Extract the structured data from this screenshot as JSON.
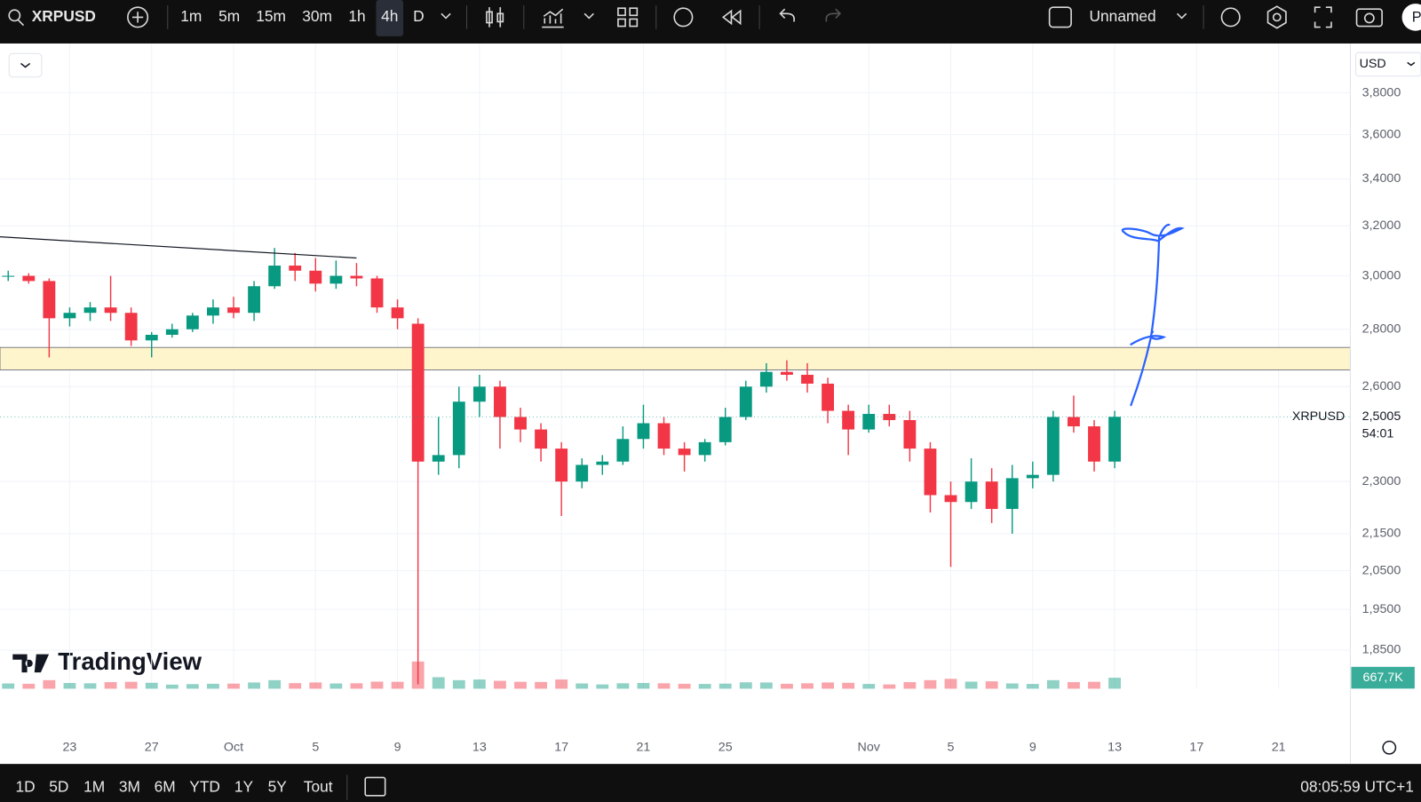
{
  "toolbar": {
    "symbol": "XRPUSD",
    "intervals": [
      "1m",
      "5m",
      "15m",
      "30m",
      "1h",
      "4h",
      "D"
    ],
    "active_interval": 5,
    "layout_name": "Unnamed",
    "avatar": "P"
  },
  "chart_data": {
    "type": "candlestick",
    "currency": "USD",
    "watermark": "TradingView",
    "open": [
      3.0,
      3.0,
      2.98,
      2.84,
      2.86,
      2.88,
      2.86,
      2.76,
      2.78,
      2.8,
      2.85,
      2.88,
      2.86,
      2.96,
      3.04,
      3.02,
      2.97,
      3.0,
      2.99,
      2.88,
      2.82,
      2.36,
      2.38,
      2.55,
      2.6,
      2.5,
      2.46,
      2.4,
      2.3,
      2.35,
      2.36,
      2.43,
      2.48,
      2.4,
      2.38,
      2.42,
      2.5,
      2.6,
      2.65,
      2.64,
      2.61,
      2.52,
      2.46,
      2.51,
      2.49,
      2.4,
      2.26,
      2.24,
      2.3,
      2.22,
      2.31,
      2.32,
      2.5,
      2.47,
      2.36
    ],
    "high": [
      3.02,
      3.01,
      2.99,
      2.88,
      2.9,
      3.0,
      2.88,
      2.79,
      2.82,
      2.86,
      2.91,
      2.92,
      2.98,
      3.11,
      3.09,
      3.07,
      3.06,
      3.05,
      3.0,
      2.91,
      2.84,
      2.5,
      2.6,
      2.64,
      2.62,
      2.53,
      2.48,
      2.42,
      2.37,
      2.38,
      2.47,
      2.54,
      2.5,
      2.42,
      2.43,
      2.53,
      2.62,
      2.68,
      2.69,
      2.68,
      2.63,
      2.54,
      2.54,
      2.54,
      2.52,
      2.42,
      2.3,
      2.37,
      2.34,
      2.35,
      2.36,
      2.52,
      2.57,
      2.49,
      2.52
    ],
    "low": [
      2.98,
      2.97,
      2.7,
      2.81,
      2.83,
      2.83,
      2.74,
      2.7,
      2.77,
      2.79,
      2.82,
      2.84,
      2.83,
      2.95,
      2.98,
      2.94,
      2.95,
      2.96,
      2.86,
      2.8,
      1.77,
      2.32,
      2.34,
      2.5,
      2.4,
      2.42,
      2.36,
      2.2,
      2.28,
      2.32,
      2.35,
      2.4,
      2.38,
      2.33,
      2.36,
      2.41,
      2.49,
      2.58,
      2.62,
      2.58,
      2.48,
      2.38,
      2.45,
      2.47,
      2.36,
      2.21,
      2.06,
      2.22,
      2.18,
      2.15,
      2.28,
      2.3,
      2.45,
      2.33,
      2.34
    ],
    "close": [
      3.0,
      2.98,
      2.84,
      2.86,
      2.88,
      2.86,
      2.76,
      2.78,
      2.8,
      2.85,
      2.88,
      2.86,
      2.96,
      3.04,
      3.02,
      2.97,
      3.0,
      2.99,
      2.88,
      2.84,
      2.36,
      2.38,
      2.55,
      2.6,
      2.5,
      2.46,
      2.4,
      2.3,
      2.35,
      2.36,
      2.43,
      2.48,
      2.4,
      2.38,
      2.42,
      2.5,
      2.6,
      2.65,
      2.64,
      2.61,
      2.52,
      2.46,
      2.51,
      2.49,
      2.4,
      2.26,
      2.24,
      2.3,
      2.22,
      2.31,
      2.32,
      2.5,
      2.47,
      2.36,
      2.5005
    ],
    "last_close_label": "2,5005",
    "countdown": "54:01",
    "volume": [
      320,
      300,
      520,
      350,
      330,
      400,
      420,
      360,
      250,
      280,
      300,
      310,
      380,
      520,
      340,
      380,
      320,
      330,
      430,
      420,
      1650,
      700,
      520,
      560,
      480,
      420,
      410,
      560,
      320,
      260,
      330,
      350,
      330,
      300,
      290,
      310,
      390,
      380,
      300,
      330,
      380,
      360,
      290,
      260,
      400,
      520,
      600,
      430,
      450,
      320,
      290,
      520,
      400,
      420,
      667.7
    ],
    "last_volume_label": "667,7K",
    "vlim": [
      0,
      2200
    ],
    "xlim": [
      -0.4,
      65.5
    ],
    "xticks": [
      {
        "value": 3,
        "label": "23"
      },
      {
        "value": 7,
        "label": "27"
      },
      {
        "value": 11,
        "label": "Oct"
      },
      {
        "value": 15,
        "label": "5"
      },
      {
        "value": 19,
        "label": "9"
      },
      {
        "value": 23,
        "label": "13"
      },
      {
        "value": 27,
        "label": "17"
      },
      {
        "value": 31,
        "label": "21"
      },
      {
        "value": 35,
        "label": "25"
      },
      {
        "value": 42,
        "label": "Nov"
      },
      {
        "value": 46,
        "label": "5"
      },
      {
        "value": 50,
        "label": "9"
      },
      {
        "value": 54,
        "label": "13"
      },
      {
        "value": 58,
        "label": "17"
      },
      {
        "value": 62,
        "label": "21"
      }
    ],
    "ylim": [
      1.76,
      4.05
    ],
    "log_scale": true,
    "grid": true,
    "yticks": [
      {
        "value": 3.8,
        "label": "3,8000"
      },
      {
        "value": 3.6,
        "label": "3,6000"
      },
      {
        "value": 3.4,
        "label": "3,4000"
      },
      {
        "value": 3.2,
        "label": "3,2000"
      },
      {
        "value": 3.0,
        "label": "3,0000"
      },
      {
        "value": 2.8,
        "label": "2,8000"
      },
      {
        "value": 2.6,
        "label": "2,6000"
      },
      {
        "value": 2.3,
        "label": "2,3000"
      },
      {
        "value": 2.15,
        "label": "2,1500"
      },
      {
        "value": 2.05,
        "label": "2,0500"
      },
      {
        "value": 1.95,
        "label": "1,9500"
      },
      {
        "value": 1.85,
        "label": "1,8500"
      }
    ],
    "up_color": "#089981",
    "down_color": "#f23645",
    "zone": {
      "low": 2.657,
      "high": 2.735,
      "color": "#fff5cc"
    },
    "trendline": {
      "x": [
        -0.4,
        17
      ],
      "y": [
        3.155,
        3.07
      ]
    }
  },
  "range_bar": {
    "ranges": [
      "1D",
      "5D",
      "1M",
      "3M",
      "6M",
      "YTD",
      "1Y",
      "5Y",
      "Tout"
    ],
    "clock": "08:05:59 UTC+1"
  }
}
